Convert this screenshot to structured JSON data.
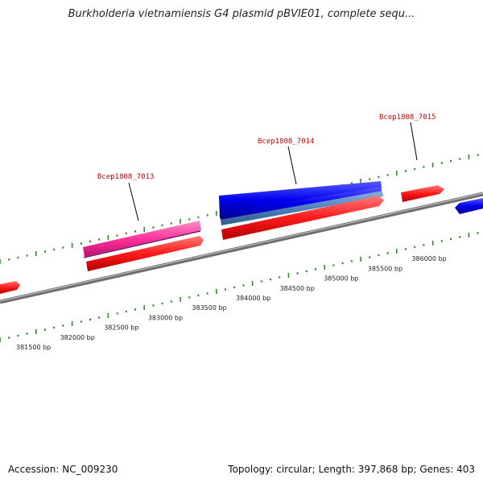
{
  "title": "Burkholderia vietnamiensis G4 plasmid pBVIE01, complete sequ...",
  "footer": {
    "accession": "Accession: NC_009230",
    "topology": "Topology: circular; Length: 397,868 bp; Genes: 403"
  },
  "colors": {
    "background": "#ffffff",
    "backbone": "#808080",
    "tick_green": "#2e8b2e",
    "label_red": "#cc0000",
    "gene_red": "#ff1a1a",
    "gene_pink": "#ff3399",
    "gene_blue": "#0000ee",
    "gene_steel": "#4f81bd"
  },
  "scale_labels": [
    "381500 bp",
    "382000 bp",
    "382500 bp",
    "383000 bp",
    "383500 bp",
    "384000 bp",
    "384500 bp",
    "385000 bp",
    "385500 bp",
    "386000 bp"
  ],
  "gene_labels": [
    "Bcep1808_7013",
    "Bcep1808_7014",
    "Bcep1808_7015"
  ]
}
